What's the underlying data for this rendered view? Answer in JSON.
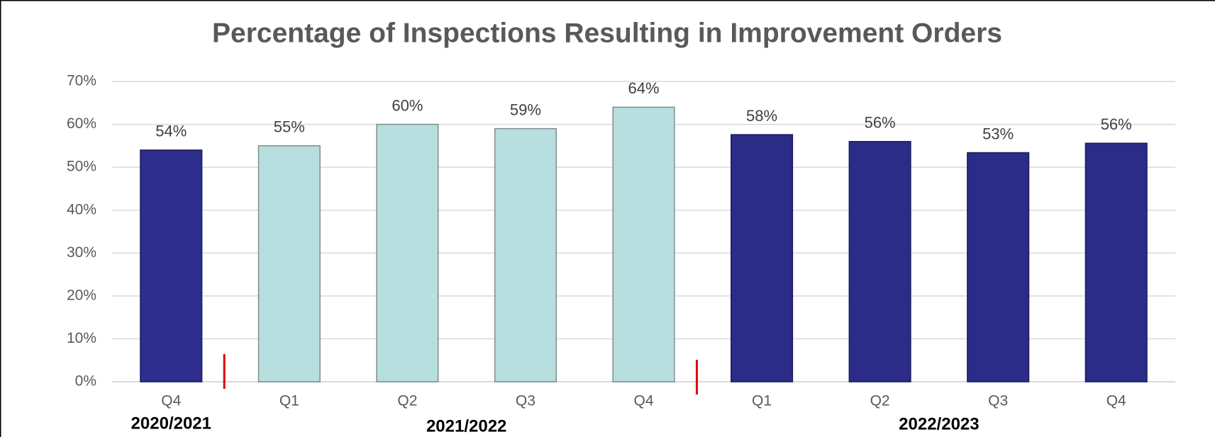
{
  "chart_data": {
    "type": "bar",
    "title": "Percentage of Inspections Resulting in Improvement Orders",
    "categories": [
      "Q4",
      "Q1",
      "Q2",
      "Q3",
      "Q4",
      "Q1",
      "Q2",
      "Q3",
      "Q4"
    ],
    "groups": [
      "2020/2021",
      "2021/2022",
      "2022/2023"
    ],
    "values": [
      54,
      55,
      60,
      59,
      64,
      57.6,
      56,
      53.4,
      55.6
    ],
    "value_labels": [
      "54%",
      "55%",
      "60%",
      "59%",
      "64%",
      "58%",
      "56%",
      "53%",
      "56%"
    ],
    "colors": [
      "#2e2e8f",
      "#b8dfe0",
      "#b8dfe0",
      "#b8dfe0",
      "#b8dfe0",
      "#2b2b88",
      "#2b2b88",
      "#2b2b88",
      "#2b2b88"
    ],
    "ylim": [
      0,
      70
    ],
    "yticks": [
      {
        "value": 0,
        "label": "0%"
      },
      {
        "value": 10,
        "label": "10%"
      },
      {
        "value": 20,
        "label": "20%"
      },
      {
        "value": 30,
        "label": "30%"
      },
      {
        "value": 40,
        "label": "40%"
      },
      {
        "value": 50,
        "label": "50%"
      },
      {
        "value": 60,
        "label": "60%"
      },
      {
        "value": 70,
        "label": "70%"
      }
    ],
    "grid": true
  }
}
